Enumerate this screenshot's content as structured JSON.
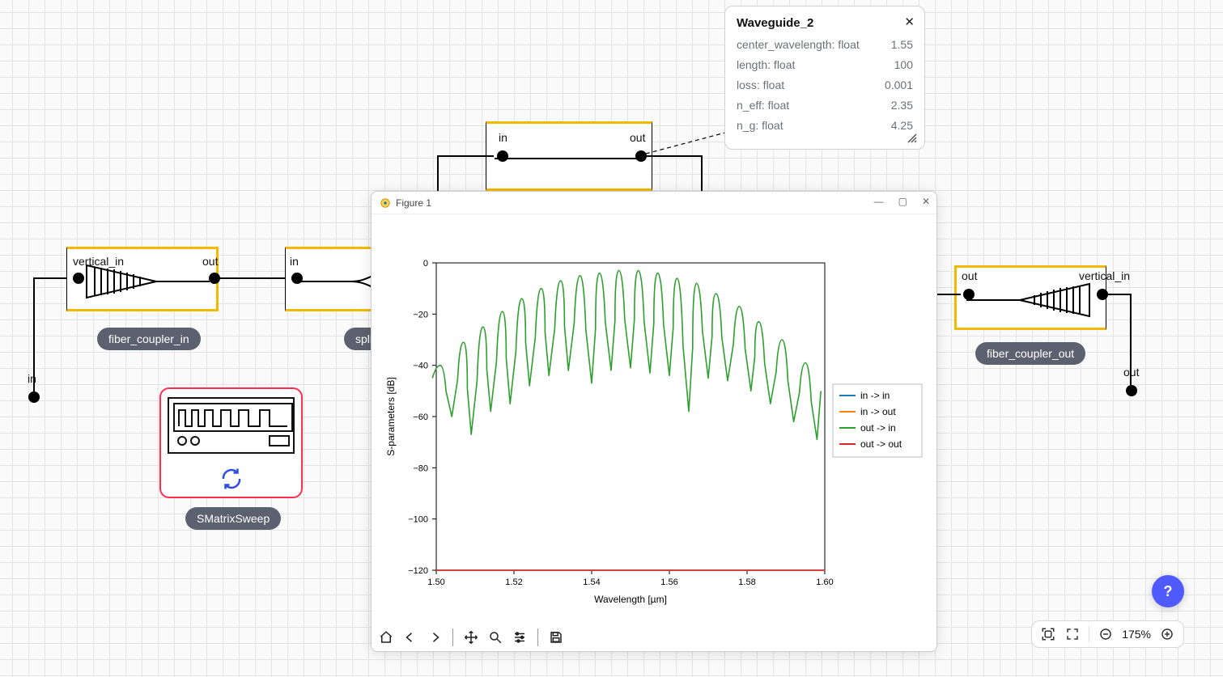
{
  "canvas": {
    "io_in_label": "in",
    "io_out_label": "out",
    "fiber_coupler_in": {
      "pill": "fiber_coupler_in",
      "port_left": "vertical_in",
      "port_right": "out"
    },
    "splitter": {
      "pill": "splitter",
      "port_left": "in"
    },
    "waveguide_top": {
      "port_left": "in",
      "port_right": "out"
    },
    "fiber_coupler_out": {
      "pill": "fiber_coupler_out",
      "port_left": "out",
      "port_right": "vertical_in"
    },
    "smatrix": {
      "pill": "SMatrixSweep"
    }
  },
  "prop_panel": {
    "title": "Waveguide_2",
    "rows": [
      {
        "label": "center_wavelength: float",
        "value": "1.55"
      },
      {
        "label": "length: float",
        "value": "100"
      },
      {
        "label": "loss: float",
        "value": "0.001"
      },
      {
        "label": "n_eff: float",
        "value": "2.35"
      },
      {
        "label": "n_g: float",
        "value": "4.25"
      }
    ]
  },
  "figure_window": {
    "title": "Figure 1",
    "chart": {
      "type": "line",
      "xlabel": "Wavelength [µm]",
      "ylabel": "S-parameters [dB]",
      "xlim": [
        1.5,
        1.6
      ],
      "ylim": [
        -120,
        0
      ],
      "xticks": [
        1.5,
        1.52,
        1.54,
        1.56,
        1.58,
        1.6
      ],
      "yticks": [
        0,
        -20,
        -40,
        -60,
        -80,
        -100,
        -120
      ],
      "label_fontsize": 12,
      "tick_fontsize": 11,
      "background_color": "#ffffff",
      "axis_color": "#000000",
      "line_width": 1.6,
      "legend": {
        "position": "right",
        "items": [
          {
            "label": "in -> in",
            "color": "#1f77b4"
          },
          {
            "label": "in -> out",
            "color": "#ff7f0e"
          },
          {
            "label": "out -> in",
            "color": "#2ca02c"
          },
          {
            "label": "out -> out",
            "color": "#d62728"
          }
        ]
      },
      "series": {
        "in_in": {
          "color": "#1f77b4",
          "x": [
            1.5,
            1.6
          ],
          "y": [
            -120,
            -120
          ]
        },
        "in_out": {
          "color": "#ff7f0e",
          "x": [
            1.5,
            1.6
          ],
          "y": [
            -120,
            -120
          ]
        },
        "out_out": {
          "color": "#d62728",
          "x": [
            1.5,
            1.6
          ],
          "y": [
            -120,
            -120
          ]
        },
        "out_in": {
          "color": "#2ca02c",
          "lobes": {
            "peak_x": [
              1.501,
              1.507,
              1.512,
              1.517,
              1.522,
              1.527,
              1.532,
              1.537,
              1.542,
              1.547,
              1.552,
              1.557,
              1.562,
              1.567,
              1.572,
              1.578,
              1.583,
              1.589,
              1.595
            ],
            "peak_y": [
              -40,
              -31,
              -25,
              -19,
              -14,
              -10,
              -7,
              -5,
              -4,
              -3,
              -3,
              -4,
              -6,
              -8,
              -12,
              -17,
              -23,
              -30,
              -39
            ],
            "dip_x": [
              1.504,
              1.509,
              1.514,
              1.519,
              1.524,
              1.529,
              1.534,
              1.54,
              1.545,
              1.55,
              1.555,
              1.56,
              1.565,
              1.57,
              1.575,
              1.581,
              1.586,
              1.592,
              1.598
            ],
            "dip_y": [
              -60,
              -67,
              -58,
              -55,
              -48,
              -44,
              -42,
              -47,
              -42,
              -41,
              -43,
              -44,
              -58,
              -45,
              -46,
              -50,
              -55,
              -62,
              -69
            ],
            "first_rise_from": -45,
            "last_fall_to": -50
          }
        }
      }
    }
  },
  "bottom_toolbar": {
    "zoom_text": "175%"
  },
  "fab": {
    "label": "?"
  }
}
